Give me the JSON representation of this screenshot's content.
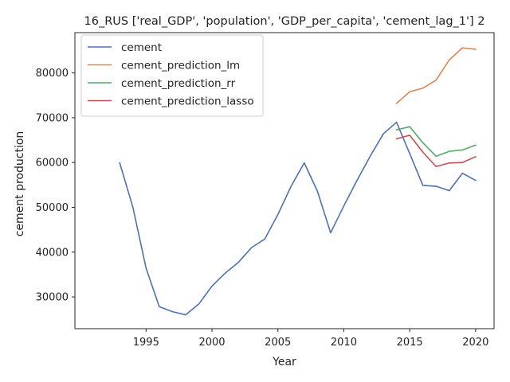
{
  "chart_data": {
    "type": "line",
    "title": "16_RUS ['real_GDP', 'population', 'GDP_per_capita', 'cement_lag_1'] 2",
    "xlabel": "Year",
    "ylabel": "cement production",
    "xlim": [
      1989.6,
      2021.4
    ],
    "ylim": [
      22900,
      89000
    ],
    "x_ticks": [
      1995,
      2000,
      2005,
      2010,
      2015,
      2020
    ],
    "y_ticks": [
      30000,
      40000,
      50000,
      60000,
      70000,
      80000
    ],
    "grid": false,
    "legend_position": "upper-left",
    "series": [
      {
        "name": "cement",
        "color": "#4c72b0",
        "x": [
          1993,
          1994,
          1995,
          1996,
          1997,
          1998,
          1999,
          2000,
          2001,
          2002,
          2003,
          2004,
          2005,
          2006,
          2007,
          2008,
          2009,
          2010,
          2011,
          2012,
          2013,
          2014,
          2015,
          2016,
          2017,
          2018,
          2019,
          2020
        ],
        "values": [
          59900,
          50000,
          36400,
          27800,
          26700,
          26000,
          28400,
          32400,
          35300,
          37700,
          41000,
          42900,
          48400,
          54700,
          59900,
          53600,
          44300,
          50300,
          56000,
          61400,
          66400,
          69000,
          62000,
          54900,
          54700,
          53700,
          57600,
          56000
        ]
      },
      {
        "name": "cement_prediction_lm",
        "color": "#dd8452",
        "x": [
          2014,
          2015,
          2016,
          2017,
          2018,
          2019,
          2020
        ],
        "values": [
          73200,
          75800,
          76600,
          78400,
          82900,
          85600,
          85300
        ]
      },
      {
        "name": "cement_prediction_rr",
        "color": "#55a868",
        "x": [
          2014,
          2015,
          2016,
          2017,
          2018,
          2019,
          2020
        ],
        "values": [
          67300,
          68000,
          64400,
          61400,
          62500,
          62800,
          63900
        ]
      },
      {
        "name": "cement_prediction_lasso",
        "color": "#c44e52",
        "x": [
          2014,
          2015,
          2016,
          2017,
          2018,
          2019,
          2020
        ],
        "values": [
          65300,
          66100,
          62300,
          59100,
          59900,
          60000,
          61300
        ]
      }
    ]
  }
}
